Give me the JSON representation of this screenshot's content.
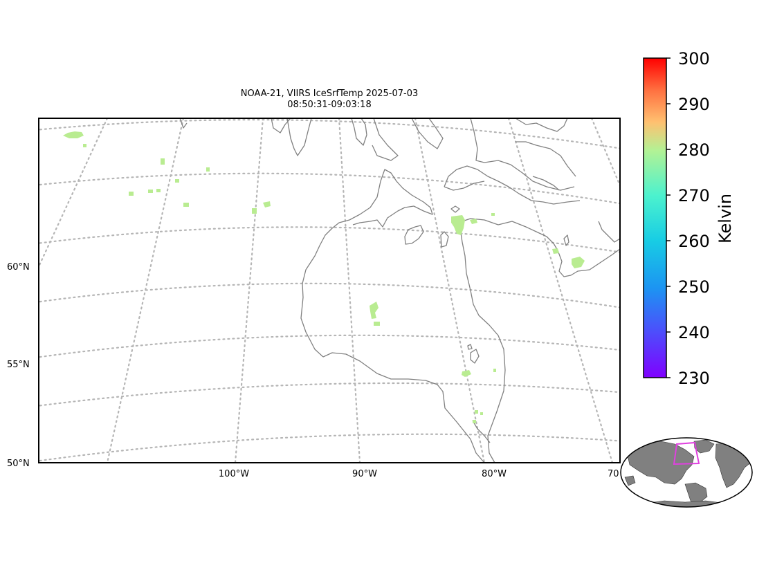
{
  "title": {
    "line1": "NOAA-21, VIIRS IceSrfTemp 2025-07-03",
    "line2": "08:50:31-09:03:18"
  },
  "map": {
    "lat_labels": [
      "60°N",
      "55°N",
      "50°N"
    ],
    "lon_labels": [
      "100°W",
      "90°W",
      "80°W",
      "70"
    ],
    "gridlines": "dotted",
    "coastline_color": "#808080",
    "data_color": "#b9ec91"
  },
  "colorbar": {
    "label": "Kelvin",
    "colormap": "rainbow",
    "min": 230,
    "max": 300,
    "ticks": [
      "230",
      "240",
      "250",
      "260",
      "270",
      "280",
      "290",
      "300"
    ]
  },
  "inset": {
    "description_icon": "globe-overview-map",
    "land_color": "#808080",
    "extent_box_color": "#e040e0"
  }
}
